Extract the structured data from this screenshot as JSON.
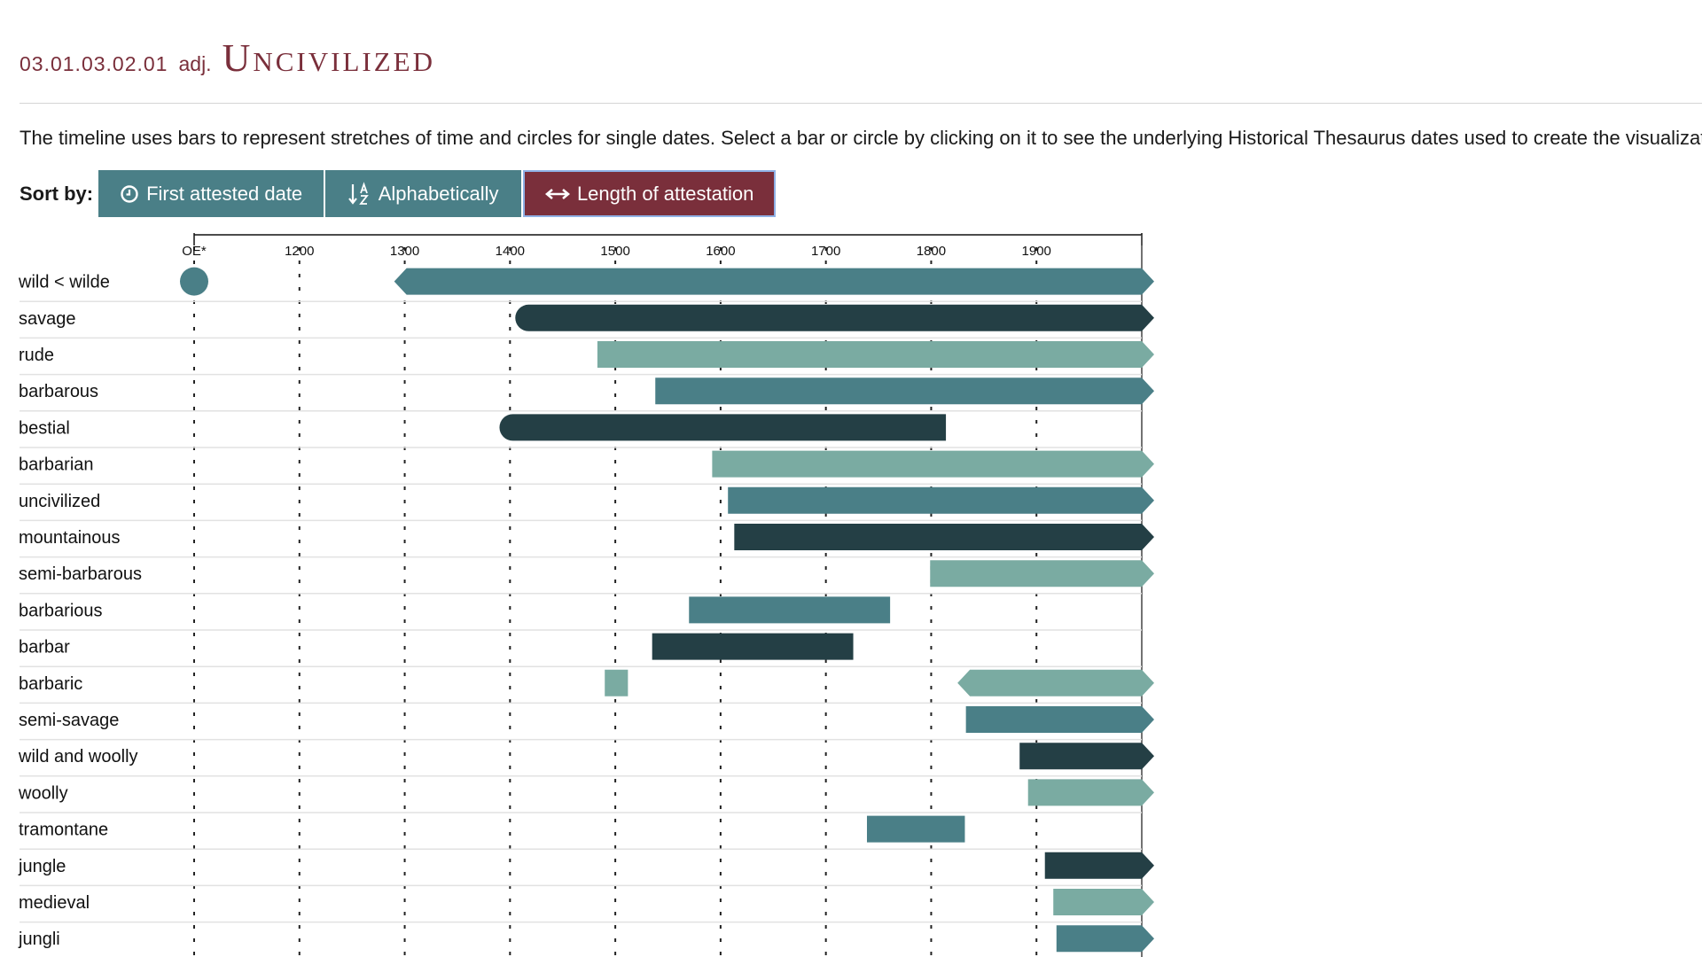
{
  "header": {
    "code": "03.01.03.02.01",
    "pos": "adj.",
    "title": "Uncivilized"
  },
  "description": "The timeline uses bars to represent stretches of time and circles for single dates. Select a bar or circle by clicking on it to see the underlying Historical Thesaurus dates used to create the visualization.",
  "sort": {
    "label": "Sort by:",
    "buttons": [
      {
        "label": "First attested date",
        "icon": "clock-icon",
        "active": false
      },
      {
        "label": "Alphabetically",
        "icon": "sort-alpha-icon",
        "active": false
      },
      {
        "label": "Length of attestation",
        "icon": "double-arrow-icon",
        "active": true
      }
    ]
  },
  "colors": {
    "teal": "#4a7f87",
    "dark": "#243f45",
    "light": "#7aaba2",
    "accent": "#7a2f3b"
  },
  "chart_data": {
    "type": "timeline",
    "x_ticks": [
      "OE*",
      "1200",
      "1300",
      "1400",
      "1500",
      "1600",
      "1700",
      "1800",
      "1900"
    ],
    "xlim": [
      1100,
      2000
    ],
    "grid": "dashed vertical",
    "rows": [
      {
        "label": "wild < wilde",
        "color": "teal",
        "points": [
          1100
        ],
        "bars": [
          {
            "start": 1290,
            "end": 2000,
            "open_start": true,
            "open_end": true
          }
        ]
      },
      {
        "label": "savage",
        "color": "dark",
        "points": [],
        "bars": [
          {
            "start": 1405,
            "end": 2000,
            "round_start": true,
            "open_end": true
          }
        ]
      },
      {
        "label": "rude",
        "color": "light",
        "points": [],
        "bars": [
          {
            "start": 1483,
            "end": 2000,
            "open_end": true
          }
        ]
      },
      {
        "label": "barbarous",
        "color": "teal",
        "points": [],
        "bars": [
          {
            "start": 1538,
            "end": 2000,
            "open_end": true
          }
        ]
      },
      {
        "label": "bestial",
        "color": "dark",
        "points": [],
        "bars": [
          {
            "start": 1390,
            "end": 1814,
            "round_start": true
          }
        ]
      },
      {
        "label": "barbarian",
        "color": "light",
        "points": [],
        "bars": [
          {
            "start": 1592,
            "end": 2000,
            "open_end": true
          }
        ]
      },
      {
        "label": "uncivilized",
        "color": "teal",
        "points": [],
        "bars": [
          {
            "start": 1607,
            "end": 2000,
            "open_end": true
          }
        ]
      },
      {
        "label": "mountainous",
        "color": "dark",
        "points": [],
        "bars": [
          {
            "start": 1613,
            "end": 2000,
            "open_end": true
          }
        ]
      },
      {
        "label": "semi-barbarous",
        "color": "light",
        "points": [],
        "bars": [
          {
            "start": 1799,
            "end": 2000,
            "open_end": true
          }
        ]
      },
      {
        "label": "barbarious",
        "color": "teal",
        "points": [],
        "bars": [
          {
            "start": 1570,
            "end": 1761
          }
        ]
      },
      {
        "label": "barbar",
        "color": "dark",
        "points": [],
        "bars": [
          {
            "start": 1535,
            "end": 1726
          }
        ]
      },
      {
        "label": "barbaric",
        "color": "light",
        "points": [],
        "bars": [
          {
            "start": 1490,
            "end": 1512
          },
          {
            "start": 1825,
            "end": 2000,
            "open_start": true,
            "open_end": true
          }
        ]
      },
      {
        "label": "semi-savage",
        "color": "teal",
        "points": [],
        "bars": [
          {
            "start": 1833,
            "end": 2000,
            "open_end": true
          }
        ]
      },
      {
        "label": "wild and woolly",
        "color": "dark",
        "points": [],
        "bars": [
          {
            "start": 1884,
            "end": 2000,
            "open_end": true
          }
        ]
      },
      {
        "label": "woolly",
        "color": "light",
        "points": [],
        "bars": [
          {
            "start": 1892,
            "end": 2000,
            "open_end": true
          }
        ]
      },
      {
        "label": "tramontane",
        "color": "teal",
        "points": [],
        "bars": [
          {
            "start": 1739,
            "end": 1832
          }
        ]
      },
      {
        "label": "jungle",
        "color": "dark",
        "points": [],
        "bars": [
          {
            "start": 1908,
            "end": 2000,
            "open_end": true
          }
        ]
      },
      {
        "label": "medieval",
        "color": "light",
        "points": [],
        "bars": [
          {
            "start": 1916,
            "end": 2000,
            "open_end": true
          }
        ]
      },
      {
        "label": "jungli",
        "color": "teal",
        "points": [],
        "bars": [
          {
            "start": 1919,
            "end": 2000,
            "open_end": true
          }
        ]
      }
    ]
  }
}
